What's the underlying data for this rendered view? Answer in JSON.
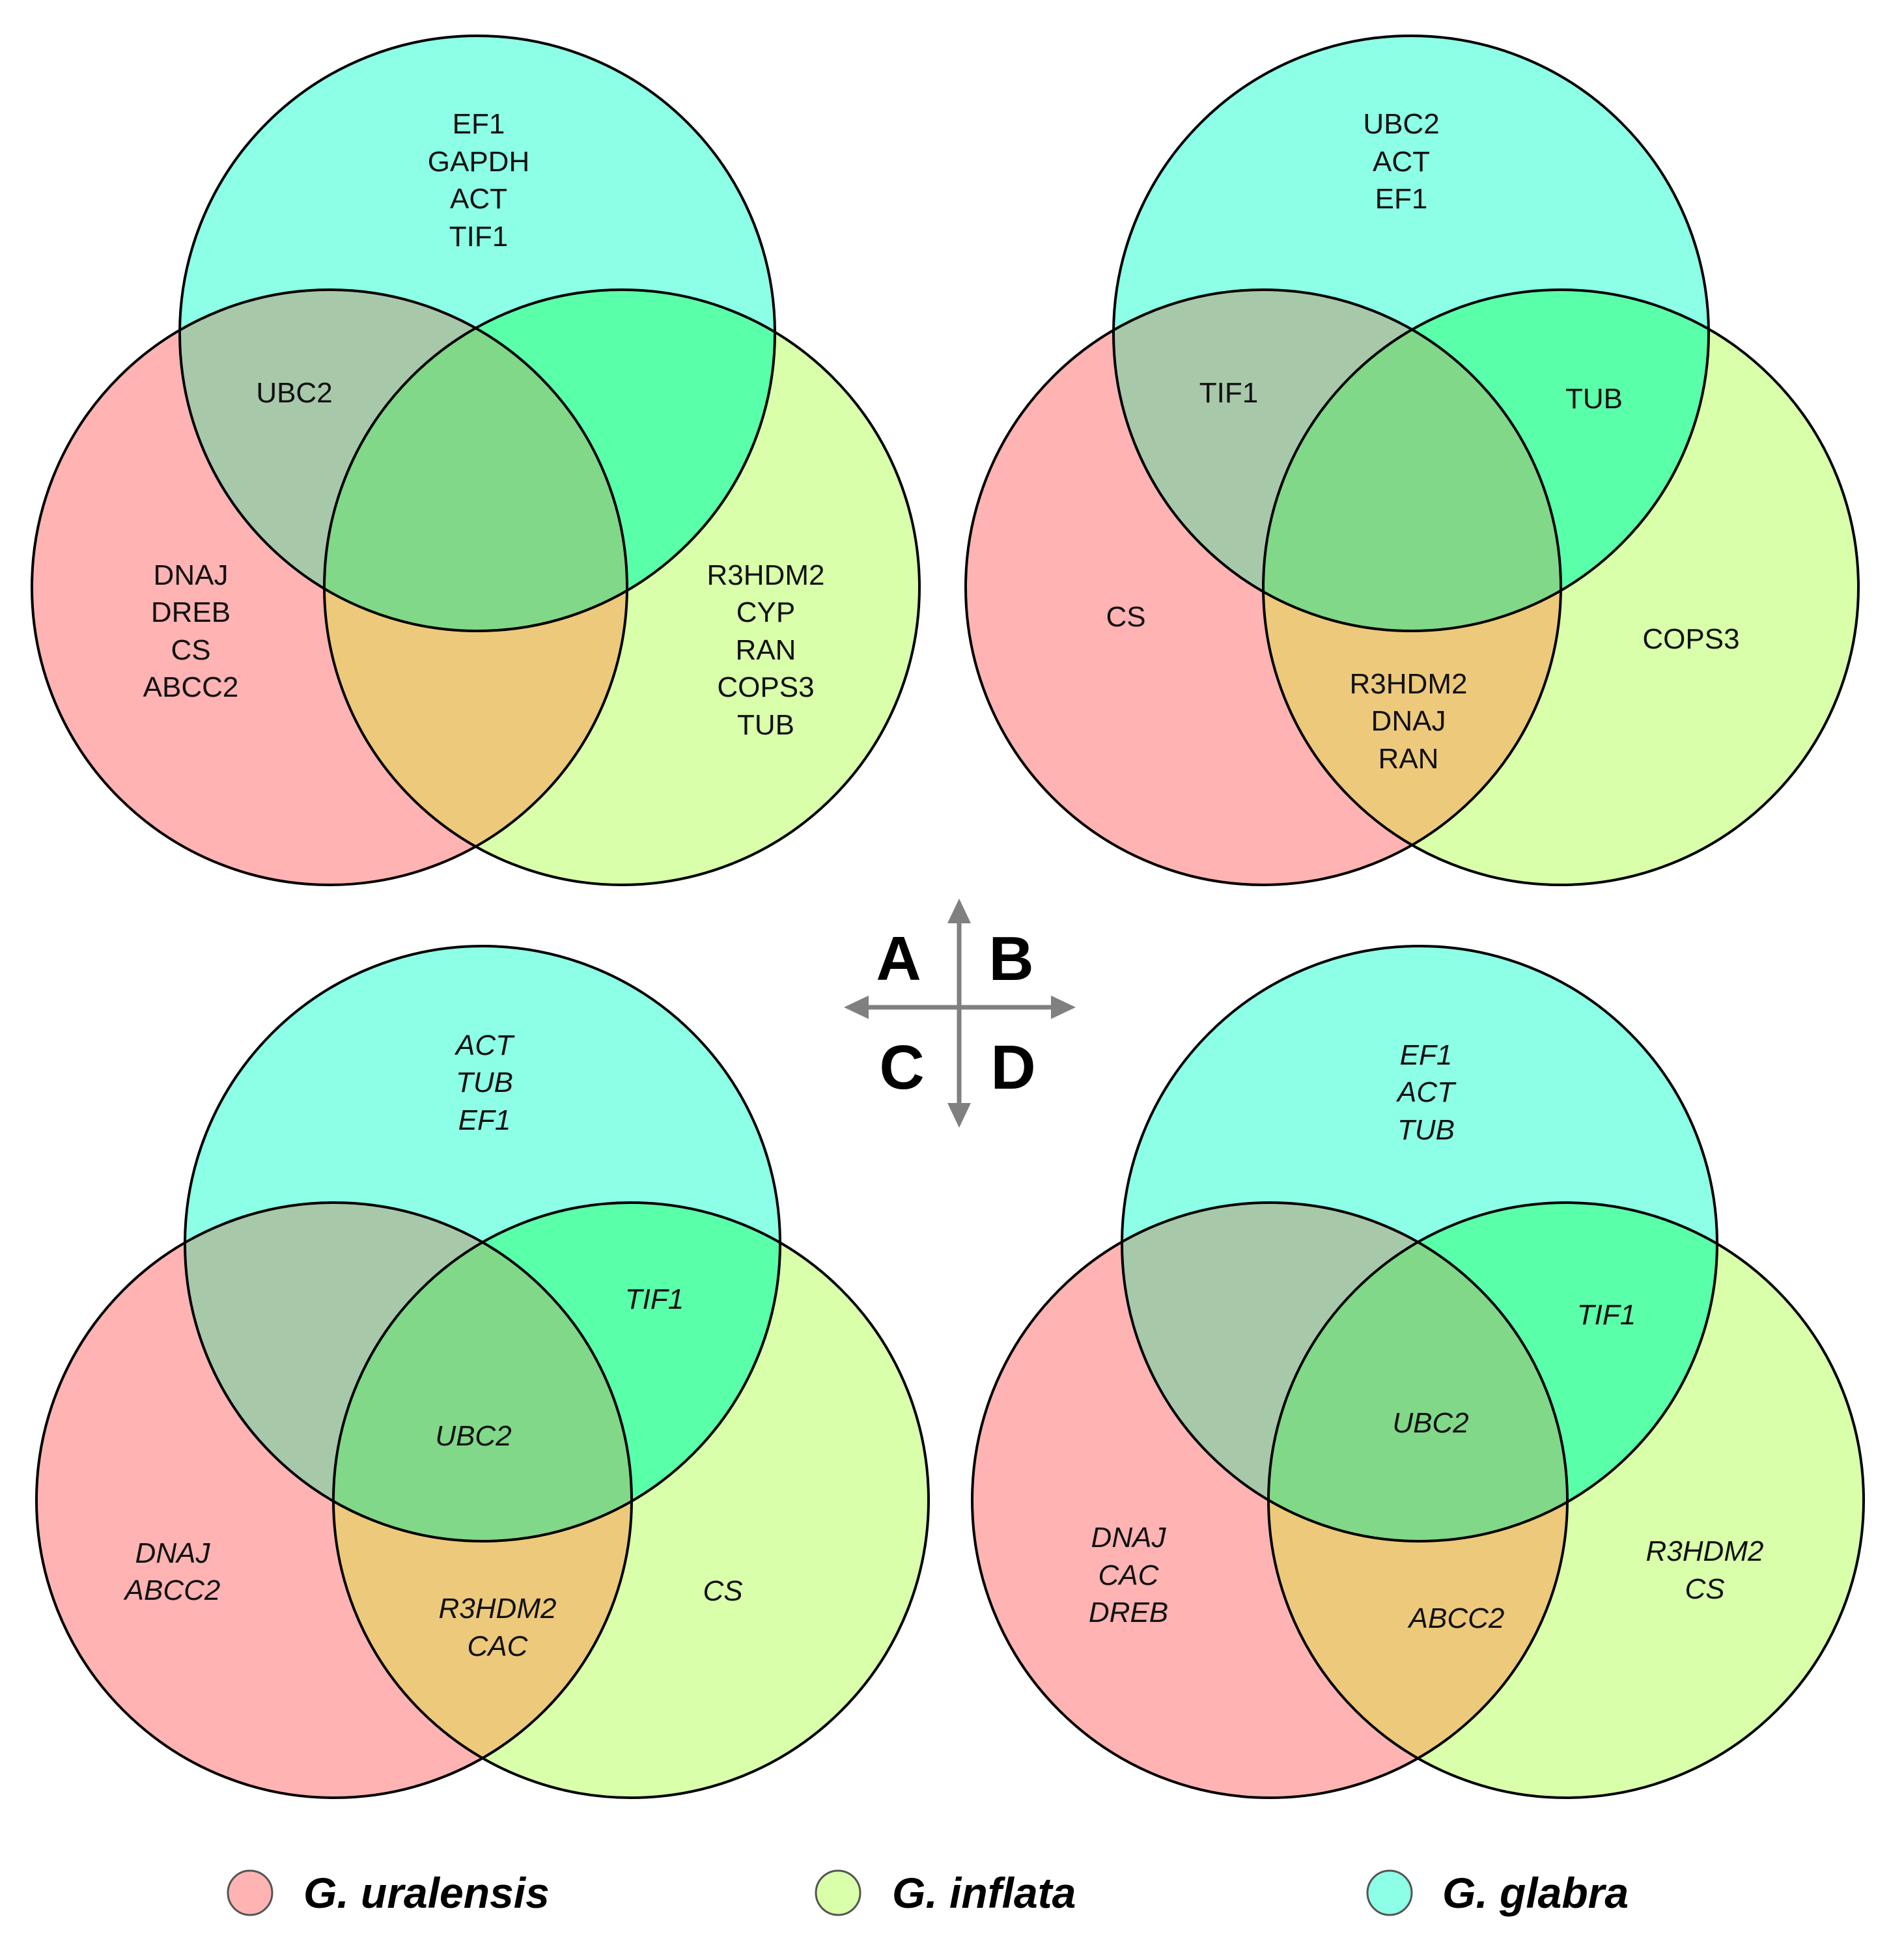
{
  "colors": {
    "uralensis": "#ffb3b3",
    "inflata": "#d9ffaa",
    "glabra": "#8cffe6",
    "uralensis_glabra": "#a8c8aa",
    "inflata_glabra": "#5affaa",
    "uralensis_inflata": "#edc97b",
    "all_three": "#80d888",
    "outline": "#000000",
    "arrow": "#808080"
  },
  "panel_letters": {
    "A": "A",
    "B": "B",
    "C": "C",
    "D": "D"
  },
  "panels": [
    {
      "id": "A",
      "italic": false,
      "regions": {
        "glabra_only": [
          "EF1",
          "GAPDH",
          "ACT",
          "TIF1"
        ],
        "uralensis_glabra": [
          "UBC2"
        ],
        "uralensis_only": [
          "DNAJ",
          "DREB",
          "CS",
          "ABCC2"
        ],
        "inflata_only": [
          "R3HDM2",
          "CYP",
          "RAN",
          "COPS3",
          "TUB"
        ],
        "inflata_glabra": [],
        "all_three": [],
        "uralensis_inflata": []
      }
    },
    {
      "id": "B",
      "italic": false,
      "regions": {
        "glabra_only": [
          "UBC2",
          "ACT",
          "EF1"
        ],
        "uralensis_glabra": [
          "TIF1"
        ],
        "inflata_glabra": [
          "TUB"
        ],
        "uralensis_only": [
          "CS"
        ],
        "inflata_only": [
          "COPS3"
        ],
        "uralensis_inflata": [
          "R3HDM2",
          "DNAJ",
          "RAN"
        ],
        "all_three": []
      }
    },
    {
      "id": "C",
      "italic": true,
      "regions": {
        "glabra_only": [
          "ACT",
          "TUB",
          "EF1"
        ],
        "inflata_glabra": [
          "TIF1"
        ],
        "all_three": [
          "UBC2"
        ],
        "uralensis_only": [
          "DNAJ",
          "ABCC2"
        ],
        "uralensis_inflata": [
          "R3HDM2",
          "CAC"
        ],
        "inflata_only": [
          "CS"
        ],
        "uralensis_glabra": []
      }
    },
    {
      "id": "D",
      "italic": true,
      "regions": {
        "glabra_only": [
          "EF1",
          "ACT",
          "TUB"
        ],
        "inflata_glabra": [
          "TIF1"
        ],
        "all_three": [
          "UBC2"
        ],
        "uralensis_only": [
          "DNAJ",
          "CAC",
          "DREB"
        ],
        "inflata_only": [
          "R3HDM2",
          "CS"
        ],
        "uralensis_inflata": [
          "ABCC2"
        ],
        "uralensis_glabra": []
      }
    }
  ],
  "legend": [
    {
      "key": "uralensis",
      "label": "G. uralensis"
    },
    {
      "key": "inflata",
      "label": "G. inflata"
    },
    {
      "key": "glabra",
      "label": "G. glabra"
    }
  ]
}
